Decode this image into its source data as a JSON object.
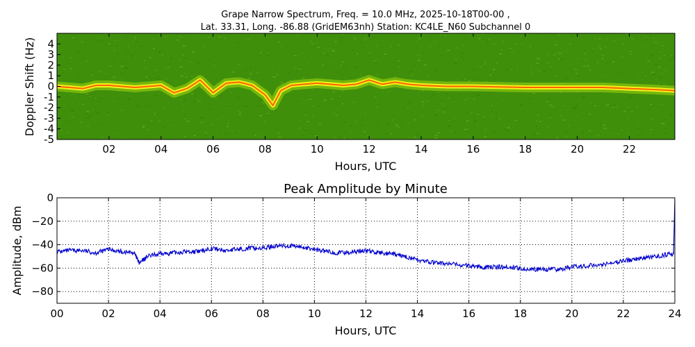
{
  "chart_data": [
    {
      "type": "heatmap",
      "title_line1": "Grape Narrow Spectrum, Freq. = 10.0 MHz, 2025-10-18T00-00 ,",
      "title_line2": "Lat.  33.31, Long. -86.88 (GridEM63nh) Station: KC4LE_N60 Subchannel 0",
      "xlabel": "Hours, UTC",
      "ylabel": "Doppler Shift (Hz)",
      "xlim": [
        0,
        23.75
      ],
      "ylim": [
        -5,
        5
      ],
      "x_ticks": [
        2,
        4,
        6,
        8,
        10,
        12,
        14,
        16,
        18,
        20,
        22
      ],
      "x_tick_labels": [
        "02",
        "04",
        "06",
        "08",
        "10",
        "12",
        "14",
        "16",
        "18",
        "20",
        "22"
      ],
      "y_ticks": [
        4,
        3,
        2,
        1,
        0,
        -1,
        -2,
        -3,
        -4,
        -5
      ],
      "y_tick_labels": [
        "4",
        "3",
        "2",
        "1",
        "0",
        "-1",
        "-2",
        "-3",
        "-4",
        "-5"
      ],
      "colors": {
        "background": "#3f8f0b",
        "mid": "#9bd00e",
        "high": "#f2f21a",
        "peak": "#ff3d00"
      },
      "doppler_trace": {
        "x": [
          0,
          1,
          1.5,
          2,
          3,
          4,
          4.5,
          5,
          5.5,
          6,
          6.5,
          7,
          7.5,
          8,
          8.3,
          8.6,
          9,
          9.5,
          10,
          10.5,
          11,
          11.5,
          12,
          12.5,
          13,
          13.5,
          14,
          15,
          16,
          18,
          20,
          21,
          22,
          23,
          23.75
        ],
        "y": [
          0,
          -0.2,
          0.1,
          0.1,
          -0.1,
          0.1,
          -0.6,
          -0.2,
          0.6,
          -0.6,
          0.3,
          0.4,
          0.1,
          -0.8,
          -1.8,
          -0.4,
          0.1,
          0.2,
          0.3,
          0.2,
          0.1,
          0.2,
          0.6,
          0.2,
          0.4,
          0.2,
          0.1,
          0,
          0,
          -0.1,
          -0.1,
          -0.1,
          -0.2,
          -0.3,
          -0.4
        ]
      }
    },
    {
      "type": "line",
      "title": "Peak Amplitude by Minute",
      "xlabel": "Hours, UTC",
      "ylabel": "Amplitude, dBm",
      "xlim": [
        0,
        24
      ],
      "ylim": [
        -90,
        0
      ],
      "grid": true,
      "x_ticks": [
        0,
        2,
        4,
        6,
        8,
        10,
        12,
        14,
        16,
        18,
        20,
        22,
        24
      ],
      "x_tick_labels": [
        "00",
        "02",
        "04",
        "06",
        "08",
        "10",
        "12",
        "14",
        "16",
        "18",
        "20",
        "22",
        "24"
      ],
      "y_ticks": [
        0,
        -20,
        -40,
        -60,
        -80
      ],
      "y_tick_labels": [
        "0",
        "−20",
        "−40",
        "−60",
        "−80"
      ],
      "series": [
        {
          "color": "#0000cc",
          "x": [
            0,
            0.5,
            1,
            1.5,
            2,
            2.5,
            3,
            3.2,
            3.5,
            4,
            4.5,
            5,
            5.5,
            6,
            6.5,
            7,
            7.5,
            8,
            8.5,
            9,
            9.5,
            10,
            10.5,
            11,
            11.5,
            12,
            12.5,
            13,
            13.5,
            14,
            14.5,
            15,
            15.5,
            16,
            16.5,
            17,
            17.5,
            18,
            18.5,
            19,
            19.5,
            20,
            20.5,
            21,
            21.5,
            22,
            22.5,
            23,
            23.5,
            23.95
          ],
          "values": [
            -46,
            -45,
            -45,
            -47,
            -44,
            -46,
            -47,
            -56,
            -50,
            -48,
            -47,
            -46,
            -46,
            -43,
            -45,
            -44,
            -43,
            -43,
            -41,
            -41,
            -42,
            -44,
            -46,
            -47,
            -46,
            -45,
            -47,
            -48,
            -50,
            -53,
            -55,
            -56,
            -57,
            -58,
            -59,
            -59,
            -59,
            -60,
            -61,
            -61,
            -61,
            -59,
            -58,
            -57,
            -56,
            -54,
            -52,
            -51,
            -49,
            -48
          ]
        }
      ]
    }
  ]
}
